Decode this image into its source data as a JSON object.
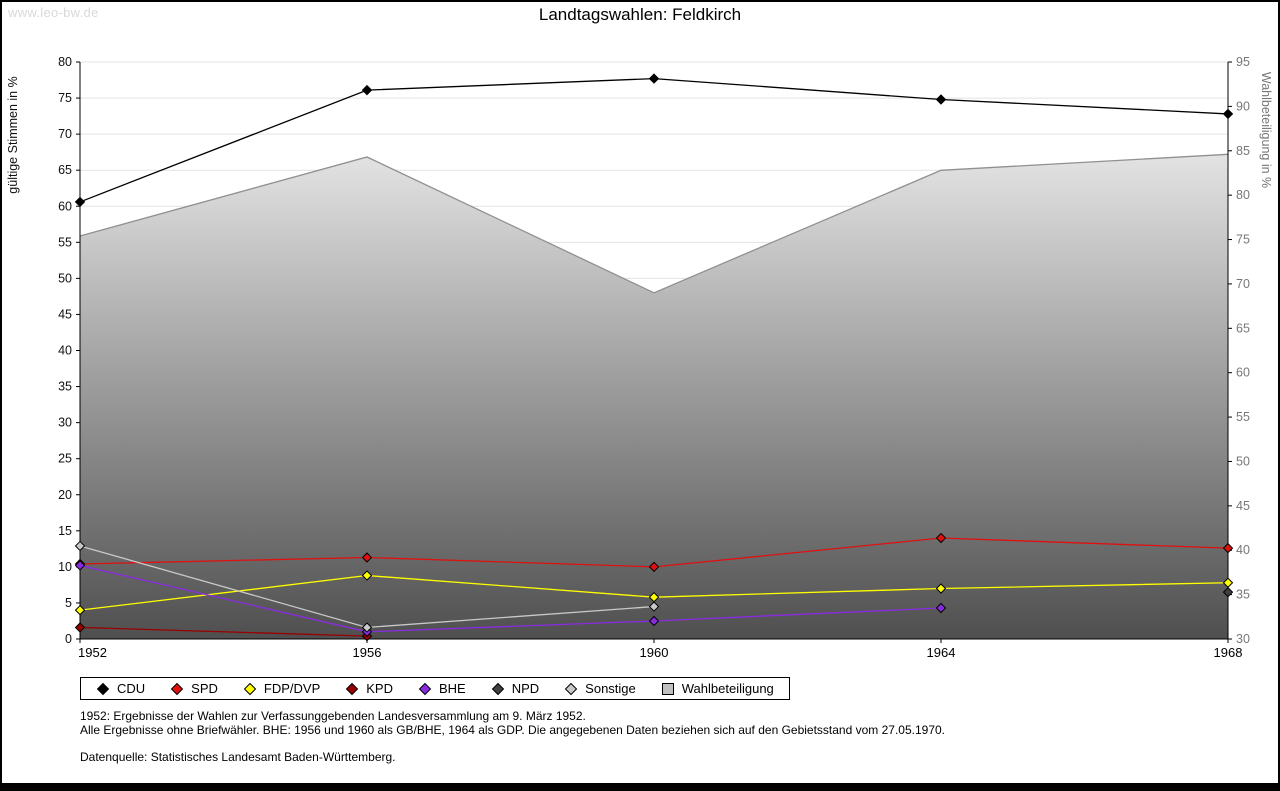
{
  "watermark": "www.leo-bw.de",
  "chart_data": {
    "type": "line",
    "title": "Landtagswahlen: Feldkirch",
    "categories": [
      "1952",
      "1956",
      "1960",
      "1964",
      "1968"
    ],
    "ylabel_left": "gültige Stimmen in %",
    "ylabel_right": "Wahlbeteiligung in %",
    "ylim_left": [
      0,
      80
    ],
    "ylim_right": [
      30,
      95
    ],
    "ytick_step": 5,
    "grid": true,
    "legend_position": "bottom",
    "marker_shape": "diamond",
    "series": [
      {
        "name": "CDU",
        "color": "#000000",
        "axis": "left",
        "values": [
          60.6,
          76.1,
          77.7,
          74.8,
          72.8
        ]
      },
      {
        "name": "SPD",
        "color": "#e01010",
        "axis": "left",
        "values": [
          10.4,
          11.3,
          10.0,
          14.0,
          12.6
        ]
      },
      {
        "name": "FDP/DVP",
        "color": "#ffff00",
        "axis": "left",
        "values": [
          4.0,
          8.8,
          5.8,
          7.0,
          7.8
        ]
      },
      {
        "name": "KPD",
        "color": "#990000",
        "axis": "left",
        "values": [
          1.6,
          0.4,
          null,
          null,
          null
        ]
      },
      {
        "name": "BHE",
        "color": "#8a2be2",
        "axis": "left",
        "values": [
          10.2,
          1.0,
          2.5,
          4.3,
          null
        ]
      },
      {
        "name": "NPD",
        "color": "#404040",
        "axis": "left",
        "values": [
          null,
          null,
          null,
          null,
          6.5
        ]
      },
      {
        "name": "Sonstige",
        "color": "#c8c8c8",
        "axis": "left",
        "values": [
          12.9,
          1.6,
          4.5,
          null,
          null
        ]
      },
      {
        "name": "Wahlbeteiligung",
        "color": "#909090",
        "axis": "right",
        "area": true,
        "values": [
          75.4,
          84.3,
          69.0,
          82.8,
          84.6
        ]
      }
    ],
    "area_gradient": {
      "top": "#ffffff",
      "bottom": "#4f4f4f"
    },
    "grid_color": "#e3e3e3"
  },
  "footnotes": {
    "line1": "1952: Ergebnisse der Wahlen zur Verfassunggebenden Landesversammlung am 9. März 1952.",
    "line2": "Alle Ergebnisse ohne Briefwähler. BHE: 1956 und 1960 als GB/BHE, 1964 als GDP. Die angegebenen Daten beziehen sich auf den Gebietsstand vom 27.05.1970.",
    "source": "Datenquelle: Statistisches Landesamt Baden-Württemberg."
  }
}
